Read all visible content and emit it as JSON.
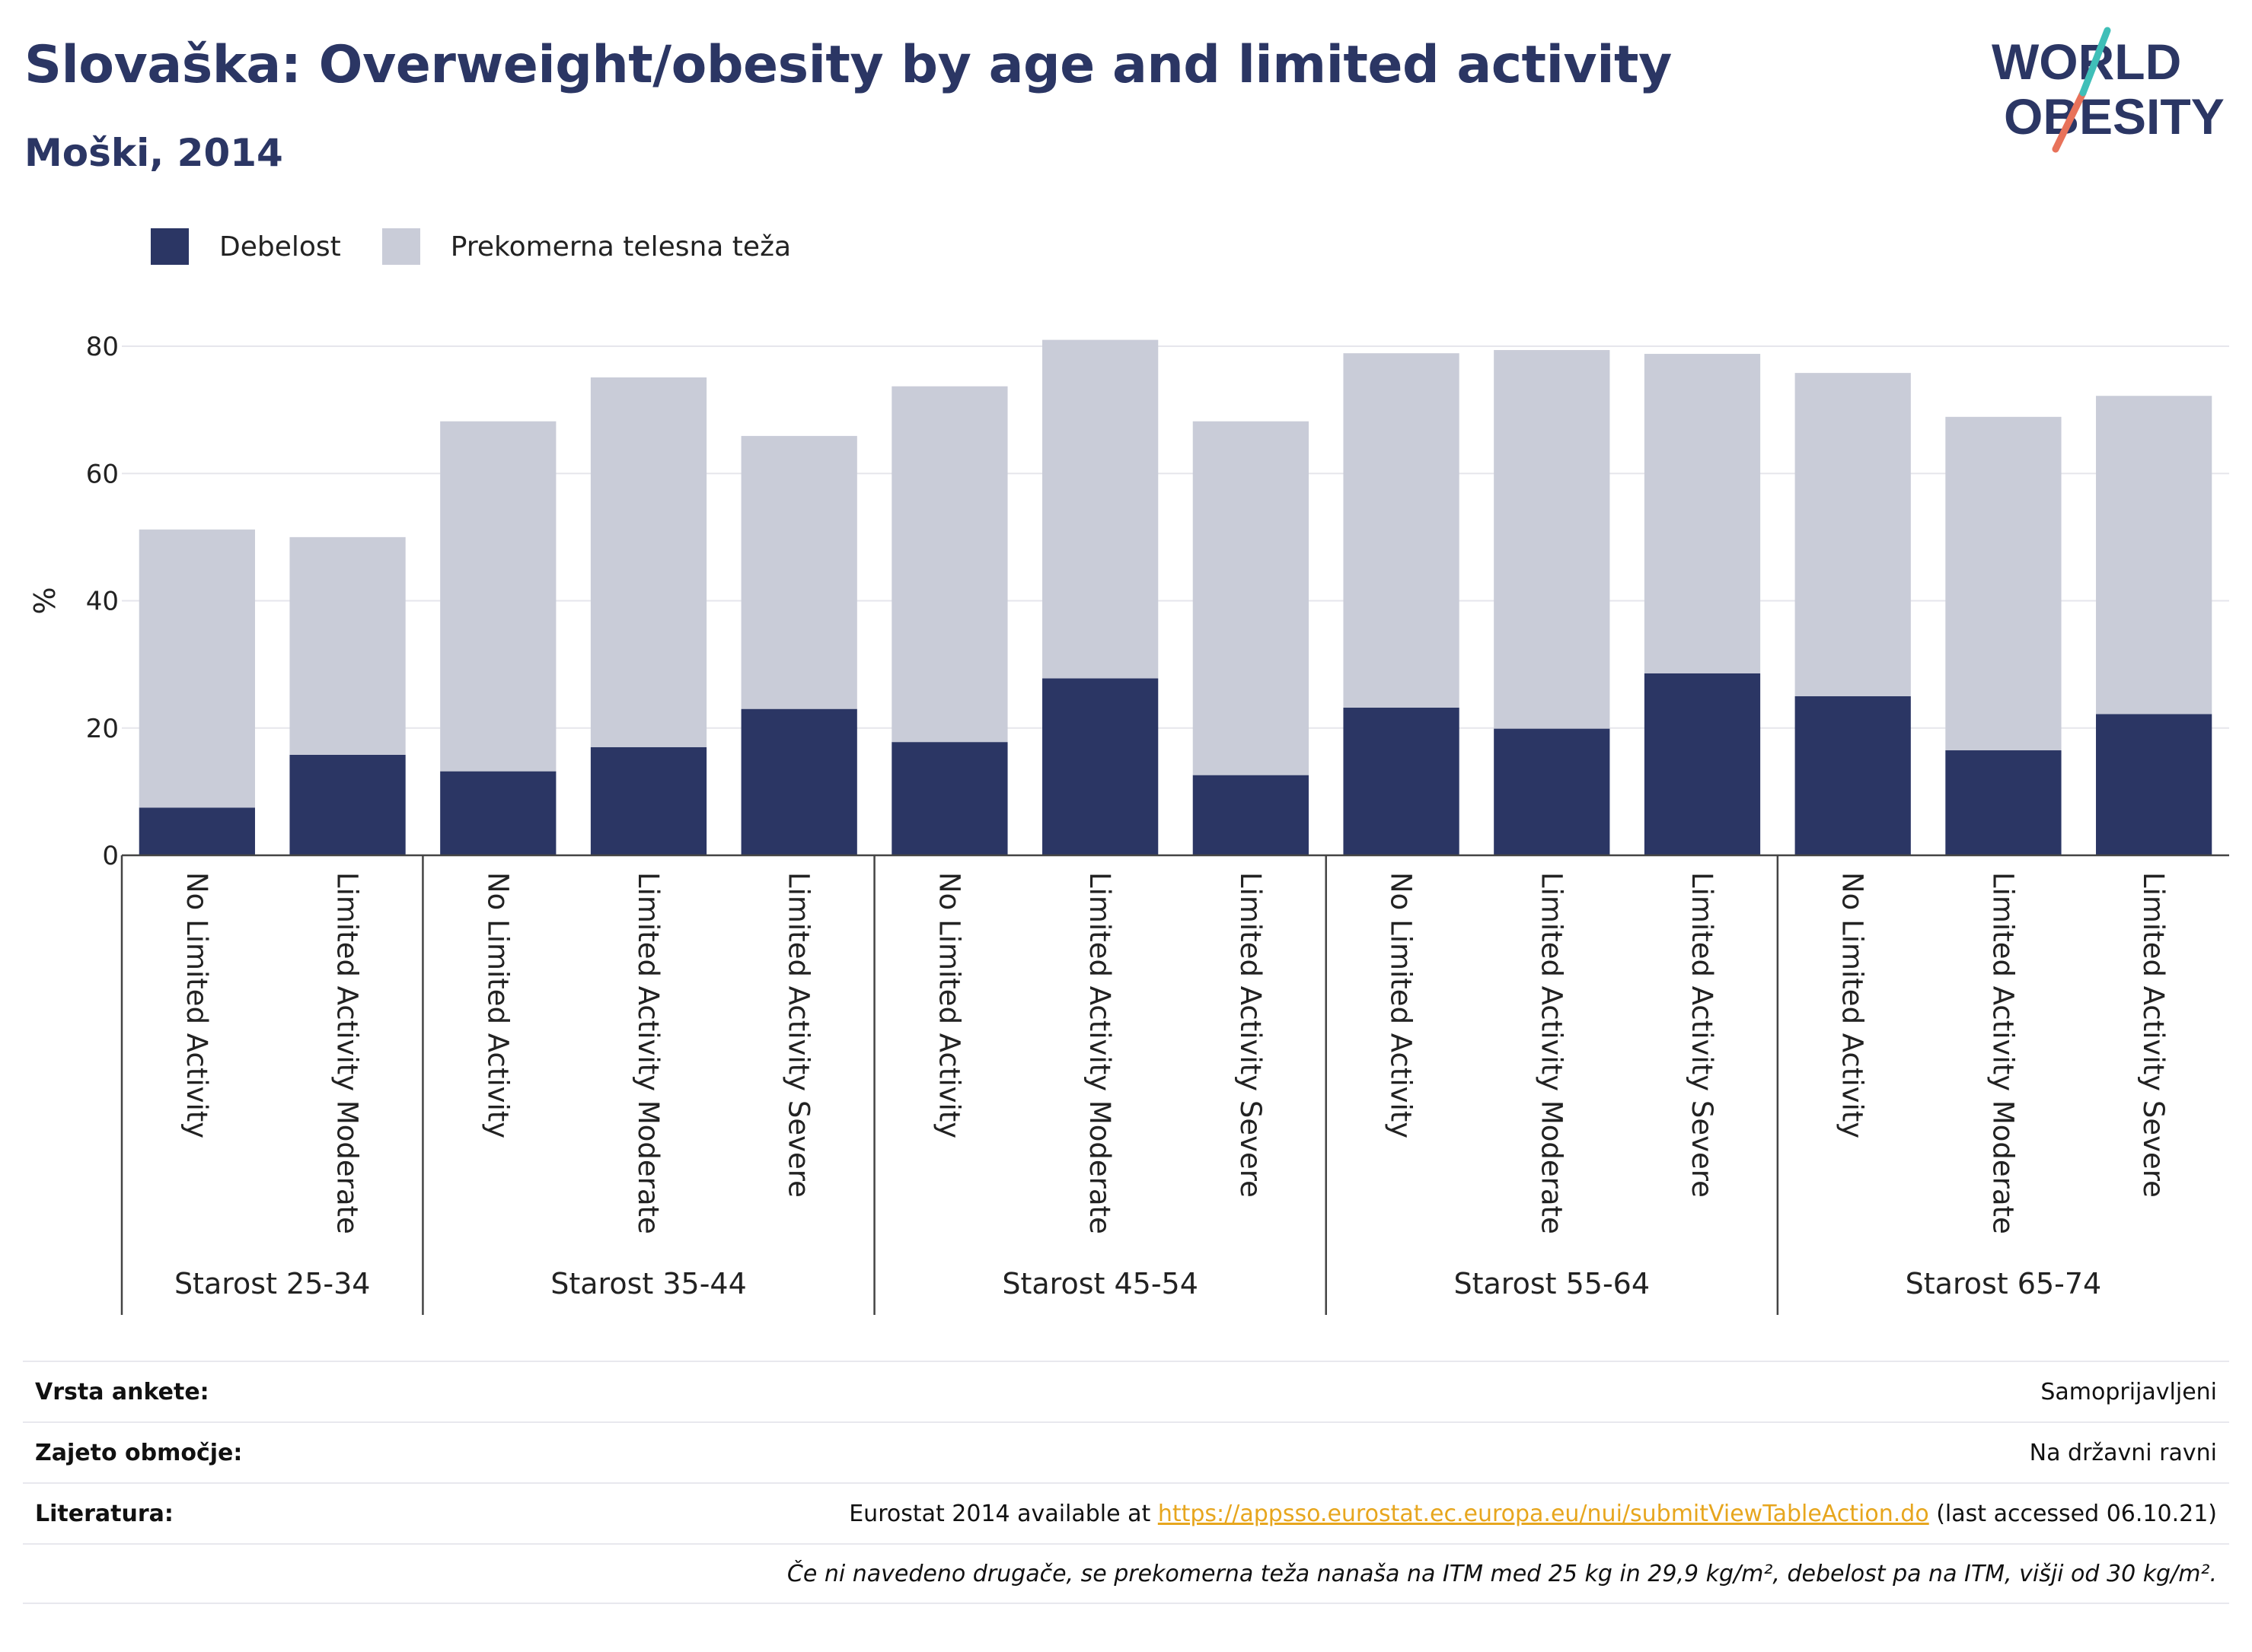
{
  "header": {
    "title": "Slovaška: Overweight/obesity by age and limited activity",
    "subtitle": "Moški, 2014"
  },
  "logo": {
    "line1": "WORLD",
    "line2": "OBESITY"
  },
  "legend": [
    {
      "label": "Debelost",
      "color": "#2b3664"
    },
    {
      "label": "Prekomerna telesna teža",
      "color": "#c9ccd8"
    }
  ],
  "chart_data": {
    "type": "bar",
    "stacked": true,
    "ylabel": "%",
    "ylim": [
      0,
      90
    ],
    "yticks": [
      0,
      20,
      40,
      60,
      80
    ],
    "grid": true,
    "legend_position": "top-left",
    "groups": [
      {
        "label": "Starost 25-34",
        "categories": [
          "No Limited Activity",
          "Limited Activity Moderate"
        ]
      },
      {
        "label": "Starost 35-44",
        "categories": [
          "No Limited Activity",
          "Limited Activity Moderate",
          "Limited Activity Severe"
        ]
      },
      {
        "label": "Starost 45-54",
        "categories": [
          "No Limited Activity",
          "Limited Activity Moderate",
          "Limited Activity Severe"
        ]
      },
      {
        "label": "Starost 55-64",
        "categories": [
          "No Limited Activity",
          "Limited Activity Moderate",
          "Limited Activity Severe"
        ]
      },
      {
        "label": "Starost 65-74",
        "categories": [
          "No Limited Activity",
          "Limited Activity Moderate",
          "Limited Activity Severe"
        ]
      }
    ],
    "series": [
      {
        "name": "Debelost",
        "color": "#2b3664",
        "values": [
          7.5,
          15.8,
          13.2,
          17.0,
          23.0,
          17.8,
          27.8,
          12.6,
          23.2,
          19.9,
          28.6,
          25.0,
          16.5,
          22.2
        ]
      },
      {
        "name": "Prekomerna telesna teža",
        "color": "#c9ccd8",
        "values": [
          43.7,
          34.2,
          55.0,
          58.1,
          42.9,
          55.9,
          53.2,
          55.6,
          55.7,
          59.5,
          50.2,
          50.8,
          52.4,
          50.0
        ]
      }
    ]
  },
  "footer": {
    "survey_label": "Vrsta ankete:",
    "survey_value": "Samoprijavljeni",
    "coverage_label": "Zajeto območje:",
    "coverage_value": "Na državni ravni",
    "reference_label": "Literatura:",
    "reference_prefix": "Eurostat 2014 available at ",
    "reference_link": "https://appsso.eurostat.ec.europa.eu/nui/submitViewTableAction.do",
    "reference_suffix": " (last accessed 06.10.21)",
    "note": "Če ni navedeno drugače, se prekomerna teža nanaša na ITM med 25 kg in 29,9 kg/m², debelost pa na ITM, višji od 30 kg/m²."
  }
}
